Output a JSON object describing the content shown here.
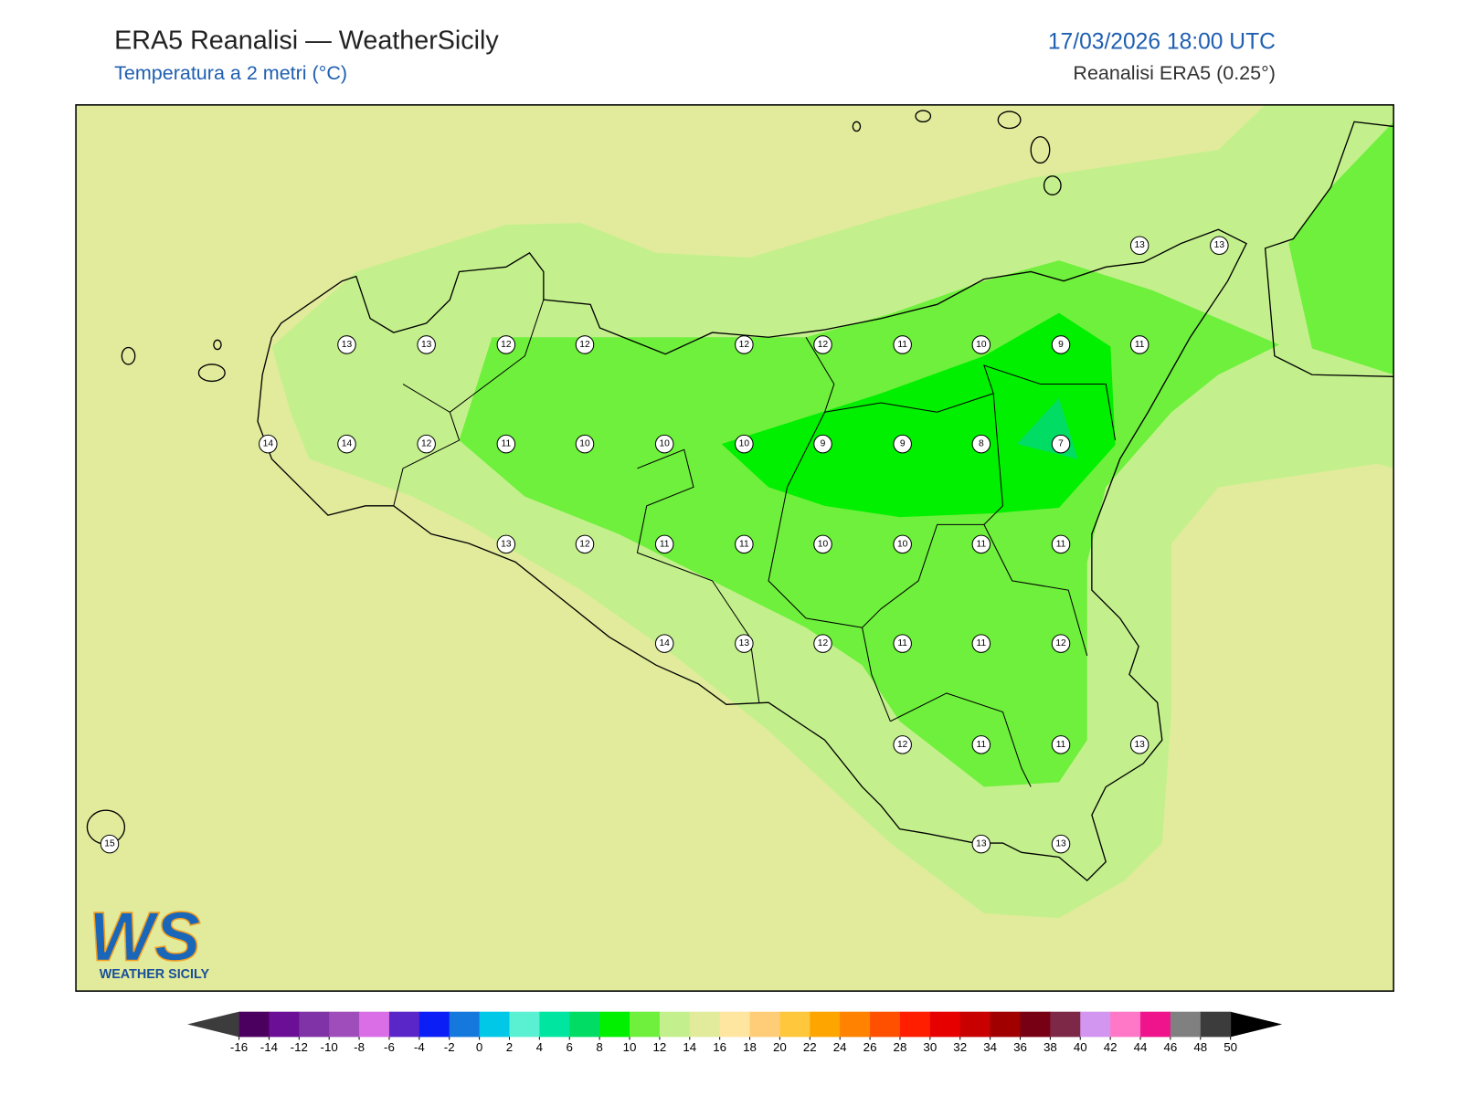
{
  "header": {
    "title": "ERA5 Reanalisi — WeatherSicily",
    "subtitle": "Temperatura a 2 metri (°C)",
    "date": "17/03/2026 18:00 UTC",
    "source": "Reanalisi ERA5 (0.25°)"
  },
  "stations": {
    "values": [
      13,
      13,
      13,
      13,
      12,
      12,
      12,
      12,
      11,
      10,
      9,
      11,
      14,
      14,
      12,
      11,
      10,
      10,
      10,
      9,
      9,
      8,
      7,
      13,
      12,
      11,
      11,
      10,
      10,
      11,
      11,
      14,
      13,
      12,
      11,
      11,
      12,
      12,
      11,
      11,
      13,
      15,
      13,
      13
    ]
  },
  "colorbar": {
    "levels": [
      -16,
      -14,
      -12,
      -10,
      -8,
      -6,
      -4,
      -2,
      0,
      2,
      4,
      6,
      8,
      10,
      12,
      14,
      16,
      18,
      20,
      22,
      24,
      26,
      28,
      30,
      32,
      34,
      36,
      38,
      40,
      42,
      44,
      46,
      48,
      50
    ],
    "colors": [
      "#4b0060",
      "#6a0f96",
      "#7f33a6",
      "#9e4dbb",
      "#d96ee6",
      "#5a26c8",
      "#0a1ef5",
      "#1478dc",
      "#00c8e6",
      "#5af0d2",
      "#00e6a0",
      "#00dc64",
      "#00f000",
      "#6ef03c",
      "#c3f08c",
      "#e1eb9b",
      "#ffe6a0",
      "#ffcd78",
      "#ffc83c",
      "#ffa500",
      "#ff8200",
      "#ff5000",
      "#ff1e00",
      "#e60000",
      "#c80000",
      "#a00000",
      "#780014",
      "#7d2846",
      "#d296f0",
      "#ff78c8",
      "#f0148c",
      "#808080",
      "#3c3c3c"
    ],
    "under_color": "#3c3c3c",
    "over_color": "#000000"
  },
  "logo": {
    "mark": "WS",
    "text": "WEATHER SICILY"
  }
}
